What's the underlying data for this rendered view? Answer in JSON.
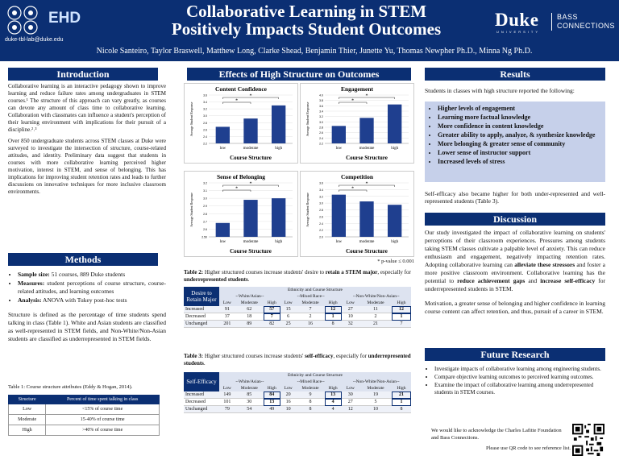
{
  "header": {
    "logo_text": "EHD",
    "email": "duke-tbl-lab@duke.edu",
    "title_line1": "Collaborative Learning in STEM",
    "title_line2": "Positively Impacts Student Outcomes",
    "authors": "Nicole Santeiro, Taylor Braswell, Matthew Long, Clarke Shead, Benjamin Thier,  Junette Yu, Thomas Newpher Ph.D., Minna Ng Ph.D.",
    "duke": "Duke",
    "duke_university": "UNIVERSITY",
    "bass_line1": "BASS",
    "bass_line2": "CONNECTIONS"
  },
  "sections": {
    "introduction": "Introduction",
    "methods": "Methods",
    "effects": "Effects of High Structure on Outcomes",
    "results": "Results",
    "discussion": "Discussion",
    "future": "Future Research"
  },
  "introduction": {
    "p1": "Collaborative learning is an interactive pedagogy shown to improve learning and reduce failure rates among undergraduates in STEM courses.¹ The structure of this approach can vary greatly, as courses can devote any amount of class time to collaborative learning. Collaboration with classmates can influence a student's perception of their learning environment with implications for their pursuit of a discipline.²˒³",
    "p2": "Over 850 undergraduate students across STEM classes at Duke were surveyed to investigate the intersection of structure, course-related attitudes, and identity. Preliminary data suggest that students in courses with more collaborative learning perceived higher motivation, interest in STEM, and sense of belonging. This has implications for improving student retention rates and leads to further discussions on innovative techniques for more inclusive classroom environments."
  },
  "methods": {
    "b1_label": "Sample size:",
    "b1_text": " 51 courses, 889 Duke students",
    "b2_label": "Measures:",
    "b2_text": " student perceptions of course structure, course-related attitudes, and learning outcomes",
    "b3_label": "Analysis:",
    "b3_text": " ANOVA with Tukey post-hoc tests",
    "p": "Structure is defined as the percentage of time students spend talking in class (Table 1). White and Asian students are classified as well-represented in STEM fields, and Non-White/Non-Asian students are classified as underrepresented in STEM fields.",
    "table1_caption": "Table 1: Course structure attributes (Eddy & Hogan, 2014).",
    "table1_headers": [
      "Structure",
      "Percent of time spent talking in class"
    ],
    "table1_rows": [
      [
        "Low",
        "<15% of course time"
      ],
      [
        "Moderate",
        "15-40% of course time"
      ],
      [
        "High",
        ">40% of course time"
      ]
    ]
  },
  "chart_data": [
    {
      "type": "bar",
      "title": "Content Confidence",
      "xlabel": "Course Structure",
      "ylabel": "Average Student Response",
      "categories": [
        "low",
        "moderate",
        "high"
      ],
      "values": [
        2.68,
        2.92,
        3.3
      ],
      "ylim": [
        2.2,
        3.6
      ],
      "yticks": [
        "2.2",
        "2.4",
        "2.6",
        "2.8",
        "3.0",
        "3.2",
        "3.4",
        "3.6"
      ]
    },
    {
      "type": "bar",
      "title": "Engagement",
      "xlabel": "Course Structure",
      "ylabel": "Average Student Response",
      "categories": [
        "low",
        "moderate",
        "high"
      ],
      "values": [
        2.85,
        3.15,
        3.65
      ],
      "ylim": [
        2.2,
        4.0
      ],
      "yticks": [
        "2.2",
        "2.4",
        "2.6",
        "2.8",
        "3.0",
        "3.2",
        "3.4",
        "3.6",
        "3.8",
        "4.0"
      ]
    },
    {
      "type": "bar",
      "title": "Sense of Belonging",
      "xlabel": "Course Structure",
      "ylabel": "Average Student Response",
      "categories": [
        "low",
        "moderate",
        "high"
      ],
      "values": [
        2.68,
        2.98,
        3.0
      ],
      "ylim": [
        2.5,
        3.2
      ],
      "yticks": [
        "2.50",
        "2.6",
        "2.7",
        "2.8",
        "2.9",
        "3.0",
        "3.1",
        "3.2"
      ]
    },
    {
      "type": "bar",
      "title": "Competition",
      "xlabel": "Course Structure",
      "ylabel": "Average Student Response",
      "categories": [
        "low",
        "moderate",
        "high"
      ],
      "values": [
        3.25,
        3.05,
        2.95
      ],
      "ylim": [
        2.0,
        3.6
      ],
      "yticks": [
        "2.0",
        "2.2",
        "2.4",
        "2.6",
        "2.8",
        "3.0",
        "3.2",
        "3.4",
        "3.6"
      ]
    }
  ],
  "chart_star": "*",
  "pvalue": "* p-value ≤ 0.001",
  "table2": {
    "caption_a": "Table 2:",
    "caption_b": " Higher structured courses increase students' desire to ",
    "caption_c": "retain a STEM major",
    "caption_d": ", especially for ",
    "caption_e": "underrepresented students",
    "caption_f": ".",
    "row_header": "Desire to Retain Major",
    "super_header": "Ethnicity and Course Structure",
    "groups": [
      "--White/Asian--",
      "--Mixed Race--",
      "--Non-White/Non-Asian--"
    ],
    "levels": [
      "Low",
      "Moderate",
      "High",
      "Low",
      "Moderate",
      "High",
      "Low",
      "Moderate",
      "High"
    ],
    "rows": [
      {
        "label": "Increased",
        "values": [
          "91",
          "62",
          "57",
          "15",
          "7",
          "12",
          "27",
          "11",
          "12"
        ]
      },
      {
        "label": "Decreased",
        "values": [
          "37",
          "18",
          "7",
          "6",
          "2",
          "1",
          "10",
          "2",
          "1"
        ]
      },
      {
        "label": "Unchanged",
        "values": [
          "201",
          "89",
          "82",
          "25",
          "16",
          "8",
          "32",
          "21",
          "7"
        ]
      }
    ]
  },
  "table3": {
    "caption_a": "Table 3:",
    "caption_b": "  Higher structured courses increase students' ",
    "caption_c": "self-efficacy",
    "caption_d": ", especially for ",
    "caption_e": "underrepresented students",
    "caption_f": ".",
    "row_header": "Self-Efficacy",
    "super_header": "Ethnicity and Course Structure",
    "groups": [
      "--White/Asian--",
      "--Mixed Race--",
      "--Non-White/Non-Asian--"
    ],
    "levels": [
      "Low",
      "Moderate",
      "High",
      "Low",
      "Moderate",
      "High",
      "Low",
      "Moderate",
      "High"
    ],
    "rows": [
      {
        "label": "Increased",
        "values": [
          "149",
          "85",
          "84",
          "20",
          "9",
          "13",
          "30",
          "19",
          "21"
        ]
      },
      {
        "label": "Decreased",
        "values": [
          "101",
          "30",
          "13",
          "16",
          "8",
          "4",
          "27",
          "5",
          "1"
        ]
      },
      {
        "label": "Unchanged",
        "values": [
          "79",
          "54",
          "49",
          "10",
          "8",
          "4",
          "12",
          "10",
          "8"
        ]
      }
    ]
  },
  "results": {
    "intro": "Students in classes with high structure reported the following:",
    "items": [
      "Higher levels of engagement",
      "Learning more factual knowledge",
      "More confidence in content knowledge",
      "Greater ability to apply, analyze, & synthesize knowledge",
      "More belonging & greater sense of community",
      "Lower sense of instructor support",
      "Increased levels of stress"
    ],
    "after": "Self-efficacy also became higher for both under-represented and well-represented students (Table 3)."
  },
  "discussion": {
    "p1_a": "Our study investigated the impact of collaborative learning on students' perceptions of their classroom experiences. Pressures among students taking STEM classes cultivate a palpable level of anxiety. This can reduce enthusiasm and engagement, negatively impacting retention rates. Adopting collaborative learning can ",
    "p1_b": "alleviate these stressors",
    "p1_c": " and foster a more positive classroom environment. Collaborative learning has the potential to ",
    "p1_d": "reduce achievement gaps",
    "p1_e": " and ",
    "p1_f": "increase self-efficacy",
    "p1_g": " for underrepresented students in STEM.",
    "p2": "Motivation, a greater sense of belonging and higher confidence in learning course content can affect retention, and thus, pursuit of a career in STEM."
  },
  "future": {
    "items": [
      "Investigate impacts of collaborative learning among engineering students.",
      "Compare objective learning outcomes to perceived learning outcomes.",
      "Examine the impact of collaborative learning among underrepresented students in STEM courses."
    ],
    "ack": "We would like to acknowledge the Charles Lafitte Foundation and Bass Connections.",
    "qr": "Please use QR code to see reference list."
  },
  "colors": {
    "navy": "#0b2f73",
    "bar": "#1f3f8f",
    "results_bg": "#c6d0ea"
  }
}
